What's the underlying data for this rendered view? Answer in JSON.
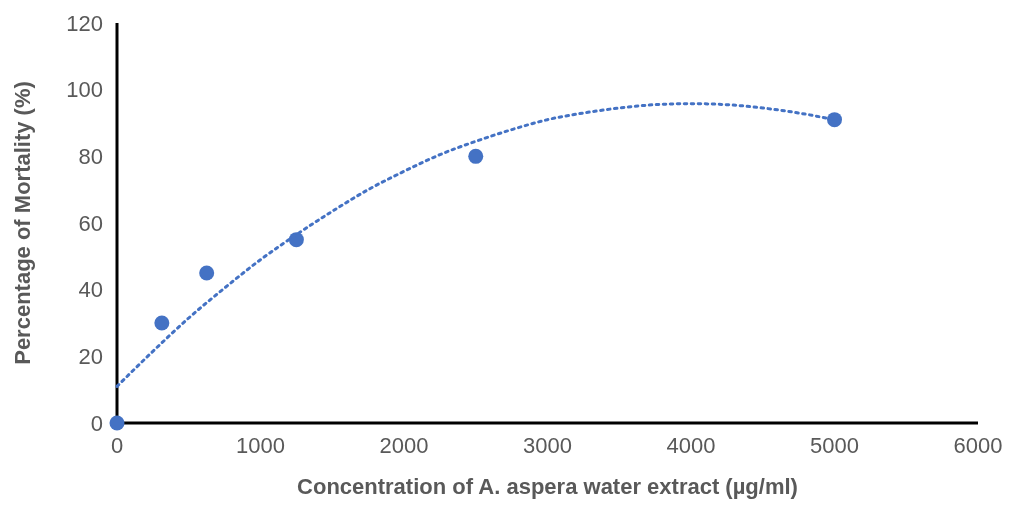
{
  "chart_data": {
    "type": "scatter",
    "xlabel": "Concentration of A. aspera water extract (µg/ml)",
    "ylabel": "Percentage of Mortality (%)",
    "xlim": [
      0,
      6000
    ],
    "xticks": [
      0,
      1000,
      2000,
      3000,
      4000,
      5000,
      6000
    ],
    "ylim": [
      0,
      120
    ],
    "yticks": [
      0,
      20,
      40,
      60,
      80,
      100,
      120
    ],
    "grid": false,
    "series": [
      {
        "color": "#4472c4",
        "marker": "circle",
        "x": [
          0,
          312.5,
          625,
          1250,
          2500,
          5000
        ],
        "values": [
          0,
          30,
          45,
          55,
          80,
          91
        ]
      },
      {
        "type": "line",
        "color": "#4472c4",
        "marker": "none",
        "line_style": "dotted",
        "x": [
          0,
          250,
          500,
          750,
          1000,
          1250,
          1500,
          1750,
          2000,
          2250,
          2500,
          2750,
          3000,
          3250,
          3500,
          3750,
          4000,
          4250,
          4500,
          4750,
          5000
        ],
        "values": [
          11,
          21.5,
          31.5,
          40.5,
          49,
          56.5,
          63.5,
          70,
          75.5,
          80.5,
          84.5,
          88,
          91,
          93,
          94.5,
          95.5,
          95.8,
          95.5,
          94.5,
          93,
          91
        ]
      }
    ]
  }
}
